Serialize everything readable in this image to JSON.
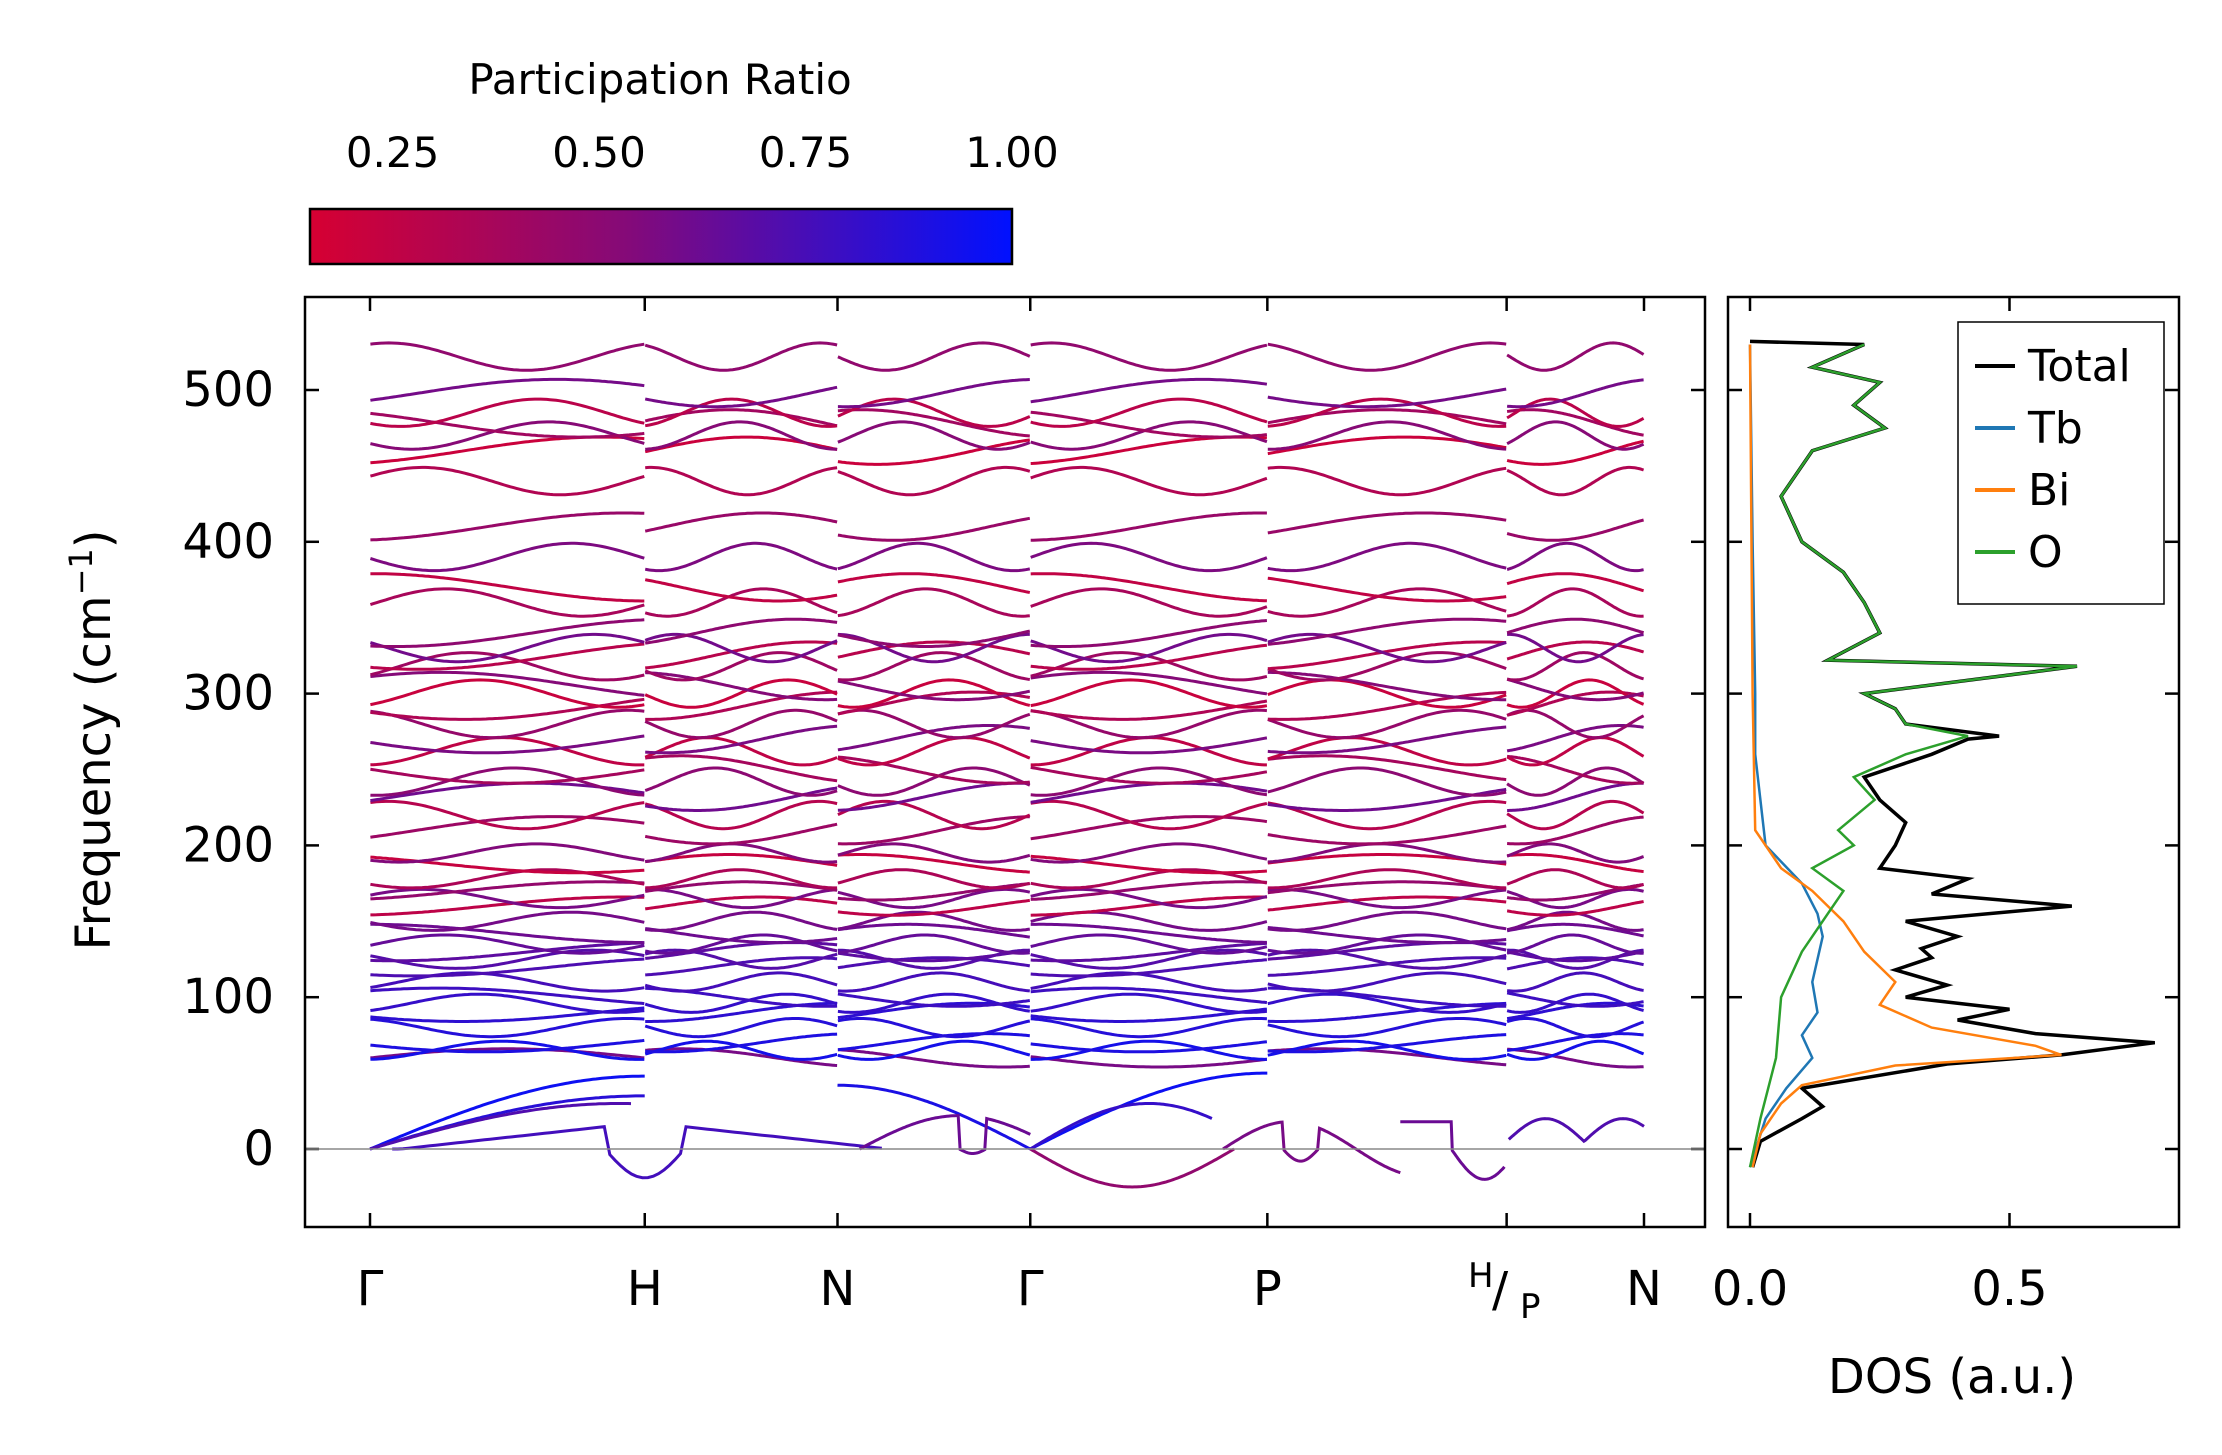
{
  "chart_data": [
    {
      "type": "line",
      "title": "",
      "xlabel": "",
      "ylabel": "Frequency (cm",
      "ylabel_sup": "−1",
      "ylabel_close": ")",
      "ylim": [
        -53,
        560
      ],
      "yticks": [
        0,
        100,
        200,
        300,
        400,
        500
      ],
      "ytick_labels": [
        "0",
        "100",
        "200",
        "300",
        "400",
        "500"
      ],
      "path_points": [
        0,
        1.24,
        2.11,
        2.98,
        4.05,
        5.13,
        5.75
      ],
      "xtick_labels": [
        "Γ",
        "H",
        "N",
        "Γ",
        "P",
        "",
        "N"
      ],
      "break_label": {
        "top": "H",
        "slash": "/",
        "bottom": "P"
      },
      "colorbar": {
        "label": "Participation Ratio",
        "range": [
          0.15,
          1.0
        ],
        "ticks": [
          0.25,
          0.5,
          0.75,
          1.0
        ],
        "tick_labels": [
          "0.25",
          "0.50",
          "0.75",
          "1.00"
        ],
        "color_low": "#d60032",
        "color_mid": "#850a78",
        "color_high": "#0011ff"
      },
      "acoustic_branches_description": "three acoustic branches from 0 at Γ, imaginary soft modes near H, Γ–P and P",
      "optical_mode_frequencies_at_gamma": [
        60,
        65,
        70,
        80,
        90,
        96,
        100,
        110,
        120,
        125,
        130,
        135,
        142,
        150,
        160,
        165,
        170,
        178,
        188,
        195,
        210,
        220,
        232,
        242,
        250,
        262,
        270,
        280,
        292,
        300,
        305,
        318,
        325,
        330,
        340,
        360,
        370,
        390,
        410,
        440,
        460,
        470,
        478,
        485,
        498,
        522
      ],
      "imaginary_minima": [
        -19,
        -3,
        -25,
        -8,
        -20
      ]
    },
    {
      "type": "line",
      "title": "",
      "xlabel": "DOS (a.u.)",
      "ylabel": "",
      "xlim": [
        -0.04,
        0.84
      ],
      "xticks": [
        0.0,
        0.5
      ],
      "xtick_labels": [
        "0.0",
        "0.5"
      ],
      "ylim": [
        -53,
        560
      ],
      "legend_position": "top-right",
      "series": [
        {
          "name": "Total",
          "color": "#000000",
          "points": [
            [
              0.005,
              -12
            ],
            [
              0.02,
              5
            ],
            [
              0.1,
              20
            ],
            [
              0.14,
              28
            ],
            [
              0.1,
              40
            ],
            [
              0.38,
              56
            ],
            [
              0.6,
              62
            ],
            [
              0.78,
              70
            ],
            [
              0.55,
              76
            ],
            [
              0.4,
              85
            ],
            [
              0.5,
              92
            ],
            [
              0.3,
              100
            ],
            [
              0.38,
              108
            ],
            [
              0.28,
              118
            ],
            [
              0.35,
              126
            ],
            [
              0.33,
              132
            ],
            [
              0.4,
              140
            ],
            [
              0.3,
              150
            ],
            [
              0.62,
              160
            ],
            [
              0.35,
              168
            ],
            [
              0.42,
              178
            ],
            [
              0.25,
              185
            ],
            [
              0.28,
              200
            ],
            [
              0.3,
              215
            ],
            [
              0.25,
              230
            ],
            [
              0.22,
              245
            ],
            [
              0.35,
              260
            ],
            [
              0.42,
              270
            ],
            [
              0.48,
              272
            ],
            [
              0.3,
              280
            ],
            [
              0.28,
              290
            ],
            [
              0.22,
              300
            ],
            [
              0.63,
              318
            ],
            [
              0.15,
              322
            ],
            [
              0.25,
              340
            ],
            [
              0.22,
              360
            ],
            [
              0.18,
              380
            ],
            [
              0.1,
              400
            ],
            [
              0.06,
              430
            ],
            [
              0.12,
              460
            ],
            [
              0.26,
              475
            ],
            [
              0.2,
              490
            ],
            [
              0.25,
              505
            ],
            [
              0.12,
              515
            ],
            [
              0.22,
              530
            ],
            [
              0.0,
              532
            ]
          ]
        },
        {
          "name": "Tb",
          "color": "#1f77b4",
          "points": [
            [
              0.0,
              -12
            ],
            [
              0.03,
              20
            ],
            [
              0.07,
              40
            ],
            [
              0.12,
              60
            ],
            [
              0.1,
              75
            ],
            [
              0.13,
              90
            ],
            [
              0.12,
              110
            ],
            [
              0.14,
              140
            ],
            [
              0.13,
              155
            ],
            [
              0.1,
              175
            ],
            [
              0.03,
              200
            ],
            [
              0.01,
              260
            ],
            [
              0.01,
              300
            ],
            [
              0.005,
              400
            ],
            [
              0.0,
              530
            ]
          ]
        },
        {
          "name": "Bi",
          "color": "#ff7f0e",
          "points": [
            [
              0.005,
              -12
            ],
            [
              0.02,
              10
            ],
            [
              0.06,
              30
            ],
            [
              0.1,
              42
            ],
            [
              0.28,
              55
            ],
            [
              0.6,
              62
            ],
            [
              0.55,
              68
            ],
            [
              0.35,
              80
            ],
            [
              0.25,
              95
            ],
            [
              0.28,
              110
            ],
            [
              0.22,
              130
            ],
            [
              0.18,
              150
            ],
            [
              0.12,
              170
            ],
            [
              0.06,
              185
            ],
            [
              0.01,
              210
            ],
            [
              0.005,
              300
            ],
            [
              0.0,
              530
            ]
          ]
        },
        {
          "name": "O",
          "color": "#2ca02c",
          "points": [
            [
              0.0,
              -12
            ],
            [
              0.02,
              20
            ],
            [
              0.05,
              60
            ],
            [
              0.06,
              100
            ],
            [
              0.1,
              130
            ],
            [
              0.15,
              155
            ],
            [
              0.18,
              170
            ],
            [
              0.12,
              185
            ],
            [
              0.2,
              200
            ],
            [
              0.17,
              210
            ],
            [
              0.24,
              230
            ],
            [
              0.2,
              245
            ],
            [
              0.3,
              260
            ],
            [
              0.42,
              272
            ],
            [
              0.3,
              280
            ],
            [
              0.28,
              290
            ],
            [
              0.22,
              300
            ],
            [
              0.63,
              318
            ],
            [
              0.15,
              322
            ],
            [
              0.25,
              340
            ],
            [
              0.22,
              360
            ],
            [
              0.18,
              380
            ],
            [
              0.1,
              400
            ],
            [
              0.06,
              430
            ],
            [
              0.12,
              460
            ],
            [
              0.26,
              475
            ],
            [
              0.2,
              490
            ],
            [
              0.25,
              505
            ],
            [
              0.12,
              515
            ],
            [
              0.22,
              530
            ]
          ]
        }
      ]
    }
  ]
}
